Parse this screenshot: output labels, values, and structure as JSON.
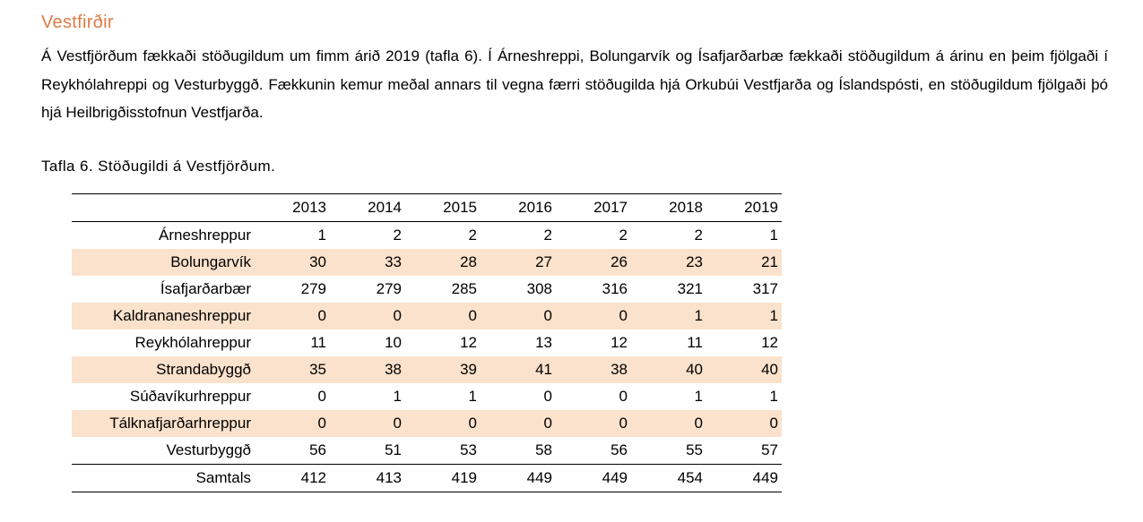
{
  "section": {
    "heading": "Vestfirðir",
    "paragraph": "Á Vestfjörðum fækkaði stöðugildum um fimm árið 2019 (tafla 6). Í Árneshreppi, Bolungarvík og Ísafjarðarbæ fækkaði stöðugildum á árinu en þeim fjölgaði í Reykhólahreppi og Vesturbyggð. Fækkunin kemur meðal annars til vegna færri stöðugilda hjá Orkubúi Vestfjarða og Íslandspósti, en stöðugildum fjölgaði þó hjá Heilbrigðisstofnun Vestfjarða."
  },
  "table": {
    "caption": "Tafla 6. Stöðugildi á Vestfjörðum.",
    "row_shading_color": "#fbe2cc",
    "years": [
      "2013",
      "2014",
      "2015",
      "2016",
      "2017",
      "2018",
      "2019"
    ],
    "rows": [
      {
        "name": "Árneshreppur",
        "values": [
          "1",
          "2",
          "2",
          "2",
          "2",
          "2",
          "1"
        ]
      },
      {
        "name": "Bolungarvík",
        "values": [
          "30",
          "33",
          "28",
          "27",
          "26",
          "23",
          "21"
        ]
      },
      {
        "name": "Ísafjarðarbær",
        "values": [
          "279",
          "279",
          "285",
          "308",
          "316",
          "321",
          "317"
        ]
      },
      {
        "name": "Kaldrananeshreppur",
        "values": [
          "0",
          "0",
          "0",
          "0",
          "0",
          "1",
          "1"
        ]
      },
      {
        "name": "Reykhólahreppur",
        "values": [
          "11",
          "10",
          "12",
          "13",
          "12",
          "11",
          "12"
        ]
      },
      {
        "name": "Strandabyggð",
        "values": [
          "35",
          "38",
          "39",
          "41",
          "38",
          "40",
          "40"
        ]
      },
      {
        "name": "Súðavíkurhreppur",
        "values": [
          "0",
          "1",
          "1",
          "0",
          "0",
          "1",
          "1"
        ]
      },
      {
        "name": "Tálknafjarðarhreppur",
        "values": [
          "0",
          "0",
          "0",
          "0",
          "0",
          "0",
          "0"
        ]
      },
      {
        "name": "Vesturbyggð",
        "values": [
          "56",
          "51",
          "53",
          "58",
          "56",
          "55",
          "57"
        ]
      }
    ],
    "total": {
      "name": "Samtals",
      "values": [
        "412",
        "413",
        "419",
        "449",
        "449",
        "454",
        "449"
      ]
    }
  }
}
